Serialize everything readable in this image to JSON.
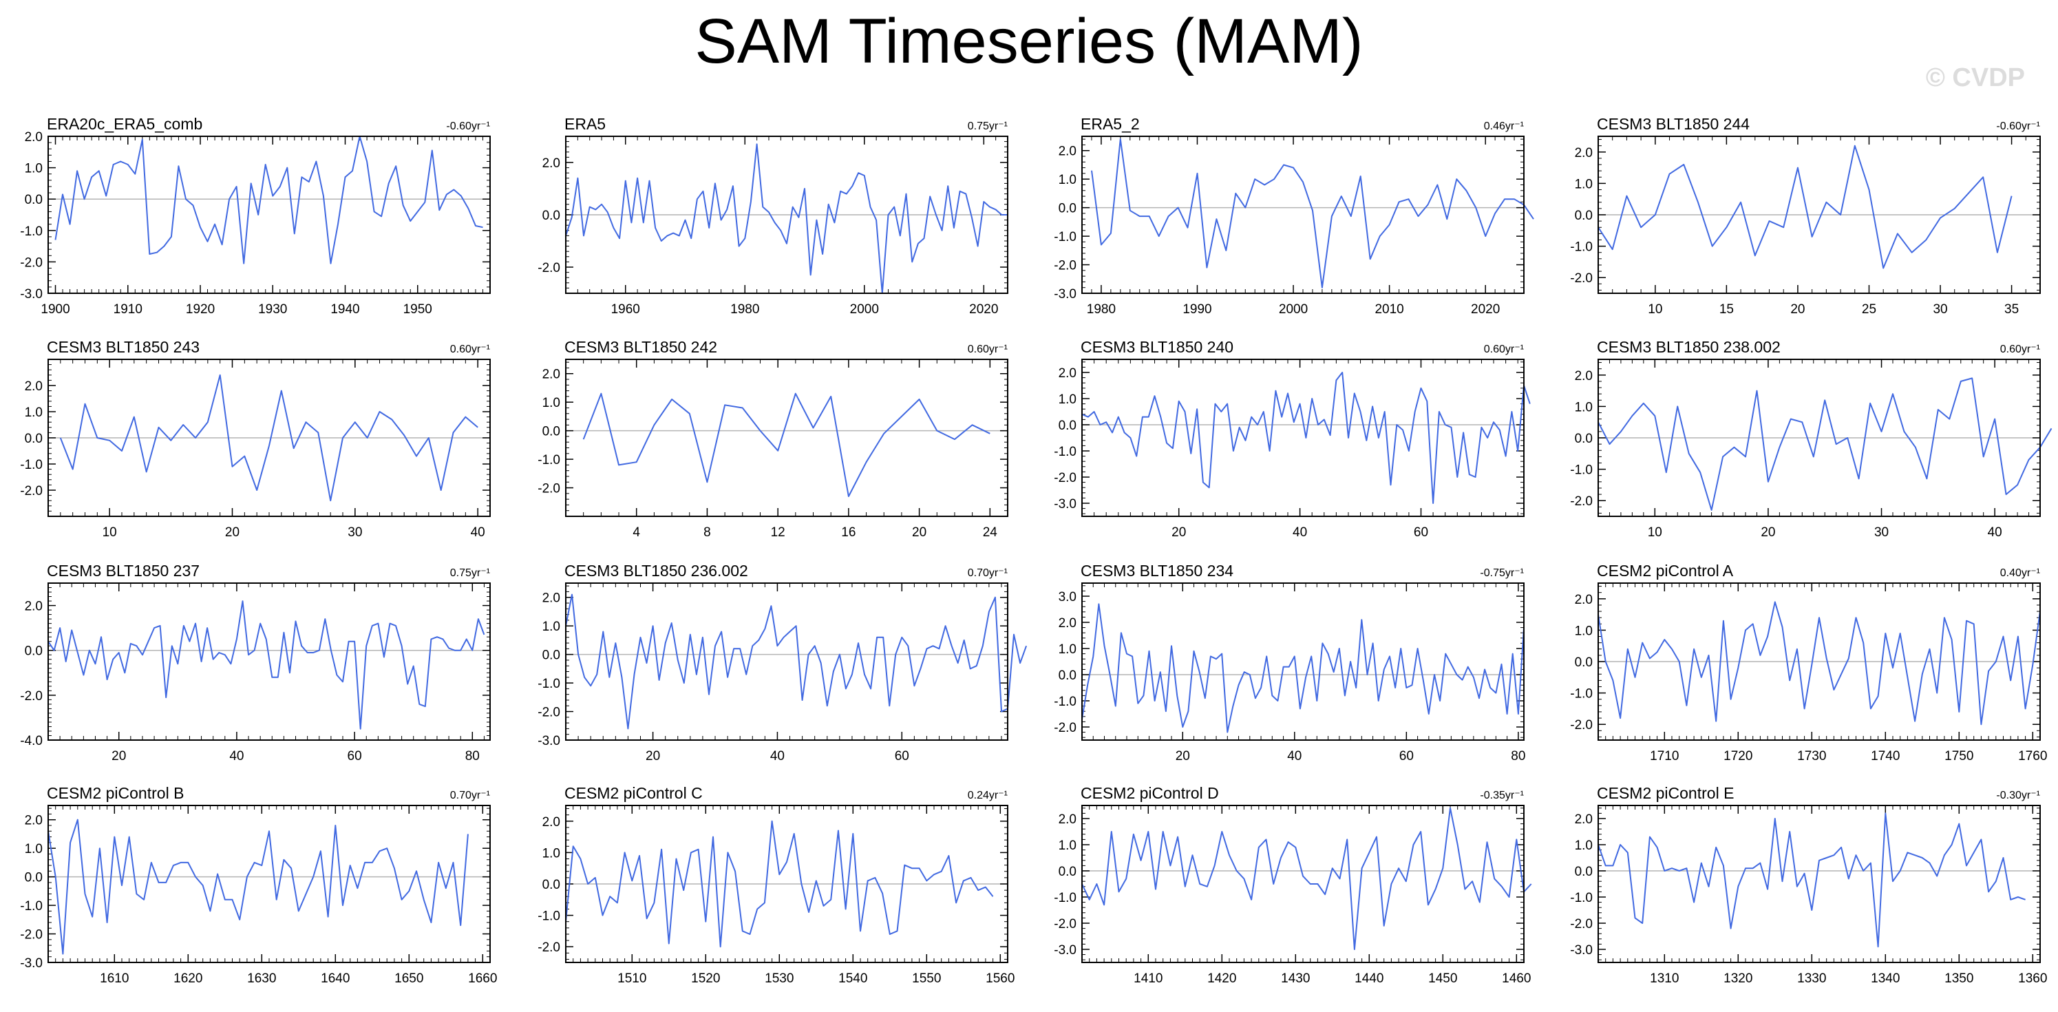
{
  "title": "SAM Timeseries (MAM)",
  "watermark": "© CVDP",
  "colors": {
    "line": "#4169e1",
    "zero_line": "#b4b4b4",
    "axis": "#000000"
  },
  "chart_data": [
    {
      "type": "line",
      "title": "ERA20c_ERA5_comb",
      "trend": "-0.60yr⁻¹",
      "xlim": [
        1899,
        1960
      ],
      "xticks": [
        1900,
        1910,
        1920,
        1930,
        1940,
        1950
      ],
      "xminor": 1,
      "ylim": [
        -3,
        2
      ],
      "yticks": [
        2,
        1,
        0,
        -1,
        -2,
        -3
      ],
      "x_start": 1900,
      "values": [
        -1.3,
        0.15,
        -0.8,
        0.9,
        0.0,
        0.7,
        0.9,
        0.1,
        1.1,
        1.2,
        1.1,
        0.8,
        1.9,
        -1.75,
        -1.7,
        -1.5,
        -1.2,
        1.05,
        0.0,
        -0.2,
        -0.9,
        -1.35,
        -0.8,
        -1.45,
        0.0,
        0.4,
        -2.05,
        0.5,
        -0.5,
        1.1,
        0.1,
        0.4,
        1.0,
        -1.1,
        0.7,
        0.55,
        1.2,
        0.1,
        -2.05,
        -0.8,
        0.7,
        0.9,
        2.0,
        1.2,
        -0.4,
        -0.55,
        0.5,
        1.05,
        -0.2,
        -0.7,
        -0.4,
        -0.1,
        1.55,
        -0.35,
        0.15,
        0.3,
        0.1,
        -0.3,
        -0.85,
        -0.9
      ]
    },
    {
      "type": "line",
      "title": "ERA5",
      "trend": "0.75yr⁻¹",
      "xlim": [
        1950,
        2024
      ],
      "xticks": [
        1960,
        1980,
        2000,
        2020
      ],
      "xminor": 2,
      "ylim": [
        -3,
        3
      ],
      "yticks": [
        2,
        0,
        -2
      ],
      "x_start": 1950,
      "values": [
        -0.8,
        -0.1,
        1.4,
        -0.8,
        0.3,
        0.2,
        0.4,
        0.1,
        -0.5,
        -0.9,
        1.3,
        -0.3,
        1.4,
        -0.3,
        1.3,
        -0.5,
        -1.0,
        -0.8,
        -0.7,
        -0.8,
        -0.2,
        -0.9,
        0.6,
        0.9,
        -0.5,
        1.2,
        -0.2,
        0.2,
        1.1,
        -1.2,
        -0.9,
        0.5,
        2.7,
        0.3,
        0.1,
        -0.3,
        -0.6,
        -1.1,
        0.3,
        -0.1,
        1.0,
        -2.3,
        -0.2,
        -1.5,
        0.4,
        -0.3,
        0.9,
        0.8,
        1.1,
        1.6,
        1.5,
        0.3,
        -0.2,
        -3.0,
        0.0,
        0.3,
        -0.8,
        0.8,
        -1.8,
        -1.1,
        -0.9,
        0.7,
        0.0,
        -0.6,
        1.1,
        -0.5,
        0.9,
        0.8,
        -0.1,
        -1.2,
        0.5,
        0.3,
        0.2,
        0.0,
        0.0
      ]
    },
    {
      "type": "line",
      "title": "ERA5_2",
      "trend": "0.46yr⁻¹",
      "xlim": [
        1978,
        2024
      ],
      "xticks": [
        1980,
        1990,
        2000,
        2010,
        2020
      ],
      "xminor": 1,
      "ylim": [
        -3,
        2.5
      ],
      "yticks": [
        2,
        1,
        0,
        -1,
        -2,
        -3
      ],
      "x_start": 1979,
      "values": [
        1.3,
        -1.3,
        -0.9,
        2.4,
        -0.1,
        -0.3,
        -0.3,
        -1.0,
        -0.3,
        0.0,
        -0.7,
        1.2,
        -2.1,
        -0.4,
        -1.5,
        0.5,
        0.0,
        1.0,
        0.8,
        1.0,
        1.5,
        1.4,
        0.9,
        -0.1,
        -2.8,
        -0.3,
        0.4,
        -0.3,
        1.1,
        -1.8,
        -1.0,
        -0.6,
        0.2,
        0.3,
        -0.3,
        0.1,
        0.8,
        -0.4,
        1.0,
        0.6,
        0.0,
        -1.0,
        -0.2,
        0.3,
        0.3,
        0.1,
        -0.4
      ]
    },
    {
      "type": "line",
      "title": "CESM3 BLT1850 244",
      "trend": "-0.60yr⁻¹",
      "xlim": [
        6,
        37
      ],
      "xticks": [
        10,
        15,
        20,
        25,
        30,
        35
      ],
      "xminor": 1,
      "ylim": [
        -2.5,
        2.5
      ],
      "yticks": [
        2,
        1,
        0,
        -1,
        -2
      ],
      "x_start": 6,
      "values": [
        -0.4,
        -1.1,
        0.6,
        -0.4,
        0.0,
        1.3,
        1.6,
        0.4,
        -1.0,
        -0.4,
        0.4,
        -1.3,
        -0.2,
        -0.4,
        1.5,
        -0.7,
        0.4,
        0.0,
        2.2,
        0.8,
        -1.7,
        -0.6,
        -1.2,
        -0.8,
        -0.1,
        0.2,
        0.7,
        1.2,
        -1.2,
        0.6
      ]
    },
    {
      "type": "line",
      "title": "CESM3 BLT1850 243",
      "trend": "0.60yr⁻¹",
      "xlim": [
        5,
        41
      ],
      "xticks": [
        10,
        20,
        30,
        40
      ],
      "xminor": 1,
      "ylim": [
        -3,
        3
      ],
      "yticks": [
        2,
        1,
        0,
        -1,
        -2
      ],
      "x_start": 6,
      "values": [
        0.0,
        -1.2,
        1.3,
        0.0,
        -0.1,
        -0.5,
        0.8,
        -1.3,
        0.4,
        -0.1,
        0.5,
        0.0,
        0.6,
        2.4,
        -1.1,
        -0.7,
        -2.0,
        -0.3,
        1.8,
        -0.4,
        0.6,
        0.2,
        -2.4,
        0.0,
        0.6,
        0.0,
        1.0,
        0.7,
        0.1,
        -0.7,
        0.0,
        -2.0,
        0.2,
        0.8,
        0.4
      ]
    },
    {
      "type": "line",
      "title": "CESM3 BLT1850 242",
      "trend": "0.60yr⁻¹",
      "xlim": [
        0,
        25
      ],
      "xticks": [
        4,
        8,
        12,
        16,
        20,
        24
      ],
      "xminor": 1,
      "ylim": [
        -3,
        2.5
      ],
      "yticks": [
        2,
        1,
        0,
        -1,
        -2
      ],
      "x_start": 1,
      "values": [
        -0.3,
        1.3,
        -1.2,
        -1.1,
        0.2,
        1.1,
        0.6,
        -1.8,
        0.9,
        0.8,
        0.0,
        -0.7,
        1.3,
        0.1,
        1.2,
        -2.3,
        -1.1,
        -0.1,
        0.5,
        1.1,
        0.0,
        -0.3,
        0.2,
        -0.1
      ]
    },
    {
      "type": "line",
      "title": "CESM3 BLT1850 240",
      "trend": "0.60yr⁻¹",
      "xlim": [
        4,
        77
      ],
      "xticks": [
        20,
        40,
        60
      ],
      "xminor": 2,
      "ylim": [
        -3.5,
        2.5
      ],
      "yticks": [
        2,
        1,
        0,
        -1,
        -2,
        -3
      ],
      "x_start": 4,
      "values": [
        0.4,
        0.3,
        0.5,
        0.0,
        0.1,
        -0.3,
        0.3,
        -0.3,
        -0.5,
        -1.2,
        0.3,
        0.3,
        1.1,
        0.3,
        -0.7,
        -0.9,
        0.9,
        0.5,
        -1.1,
        0.6,
        -2.2,
        -2.4,
        0.8,
        0.5,
        0.8,
        -1.0,
        -0.1,
        -0.6,
        0.3,
        0.0,
        0.5,
        -1.0,
        1.3,
        0.3,
        1.2,
        0.1,
        0.8,
        -0.5,
        1.0,
        0.0,
        0.2,
        -0.4,
        1.7,
        2.0,
        -0.5,
        1.2,
        0.5,
        -0.6,
        0.7,
        -0.5,
        0.5,
        -2.3,
        0.0,
        -0.2,
        -1.0,
        0.5,
        1.4,
        0.9,
        -3.0,
        0.5,
        0.0,
        -0.1,
        -2.0,
        -0.3,
        -1.9,
        -2.0,
        -0.1,
        -0.5,
        0.1,
        -0.2,
        -1.2,
        0.5,
        -1.0,
        1.5,
        0.8
      ]
    },
    {
      "type": "line",
      "title": "CESM3 BLT1850 238.002",
      "trend": "0.60yr⁻¹",
      "xlim": [
        5,
        44
      ],
      "xticks": [
        10,
        20,
        30,
        40
      ],
      "xminor": 1,
      "ylim": [
        -2.5,
        2.5
      ],
      "yticks": [
        2,
        1,
        0,
        -1,
        -2
      ],
      "x_start": 5,
      "values": [
        0.5,
        -0.2,
        0.2,
        0.7,
        1.1,
        0.7,
        -1.1,
        1.0,
        -0.5,
        -1.1,
        -2.3,
        -0.6,
        -0.3,
        -0.6,
        1.5,
        -1.4,
        -0.3,
        0.6,
        0.5,
        -0.6,
        1.2,
        -0.2,
        0.0,
        -1.3,
        1.1,
        0.2,
        1.4,
        0.2,
        -0.3,
        -1.3,
        0.9,
        0.6,
        1.8,
        1.9,
        -0.6,
        0.6,
        -1.8,
        -1.5,
        -0.7,
        -0.3,
        0.3
      ]
    },
    {
      "type": "line",
      "title": "CESM3 BLT1850 237",
      "trend": "0.75yr⁻¹",
      "xlim": [
        8,
        83
      ],
      "xticks": [
        20,
        40,
        60,
        80
      ],
      "xminor": 2,
      "ylim": [
        -4,
        3
      ],
      "yticks": [
        2,
        0,
        -2,
        -4
      ],
      "x_start": 8,
      "values": [
        0.4,
        0.0,
        1.0,
        -0.5,
        0.9,
        -0.1,
        -1.1,
        0.0,
        -0.6,
        0.6,
        -1.3,
        -0.4,
        -0.1,
        -1.0,
        0.3,
        0.2,
        -0.2,
        0.4,
        1.0,
        1.1,
        -2.1,
        0.2,
        -0.6,
        1.1,
        0.4,
        1.2,
        -0.5,
        1.0,
        -0.4,
        -0.1,
        -0.2,
        -0.6,
        0.5,
        2.2,
        -0.2,
        0.0,
        1.2,
        0.5,
        -1.2,
        -1.2,
        0.8,
        -1.0,
        1.3,
        0.2,
        -0.1,
        -0.1,
        0.0,
        1.4,
        0.0,
        -1.1,
        -1.4,
        0.4,
        0.4,
        -3.5,
        0.2,
        1.1,
        1.2,
        -0.3,
        1.2,
        1.1,
        0.2,
        -1.5,
        -0.7,
        -2.4,
        -2.5,
        0.5,
        0.6,
        0.5,
        0.1,
        0.0,
        0.0,
        0.5,
        0.0,
        1.4,
        0.7
      ]
    },
    {
      "type": "line",
      "title": "CESM3 BLT1850 236.002",
      "trend": "0.70yr⁻¹",
      "xlim": [
        6,
        77
      ],
      "xticks": [
        20,
        40,
        60
      ],
      "xminor": 2,
      "ylim": [
        -3,
        2.5
      ],
      "yticks": [
        2,
        1,
        0,
        -1,
        -2,
        -3
      ],
      "x_start": 6,
      "values": [
        1.0,
        2.1,
        0.0,
        -0.8,
        -1.1,
        -0.7,
        0.8,
        -0.8,
        0.4,
        -0.8,
        -2.6,
        -0.7,
        0.6,
        -0.3,
        1.0,
        -0.9,
        0.4,
        1.1,
        -0.2,
        -1.0,
        0.7,
        -0.7,
        0.6,
        -1.4,
        0.3,
        0.8,
        -0.8,
        0.2,
        0.2,
        -0.7,
        0.3,
        0.5,
        0.9,
        1.7,
        0.3,
        0.6,
        0.8,
        1.0,
        -1.6,
        0.0,
        0.3,
        -0.3,
        -1.8,
        -0.6,
        0.0,
        -1.2,
        -0.7,
        0.4,
        -0.7,
        -1.2,
        0.6,
        0.6,
        -1.8,
        0.0,
        0.6,
        0.3,
        -1.1,
        -0.5,
        0.2,
        0.3,
        0.2,
        1.0,
        0.3,
        -0.3,
        0.5,
        -0.5,
        -0.4,
        0.3,
        1.5,
        2.0,
        -2.0,
        -1.9,
        0.7,
        -0.3,
        0.3
      ]
    },
    {
      "type": "line",
      "title": "CESM3 BLT1850 234",
      "trend": "-0.75yr⁻¹",
      "xlim": [
        2,
        81
      ],
      "xticks": [
        20,
        40,
        60,
        80
      ],
      "xminor": 2,
      "ylim": [
        -2.5,
        3.5
      ],
      "yticks": [
        3,
        2,
        1,
        0,
        -1,
        -2
      ],
      "x_start": 2,
      "values": [
        -1.7,
        -0.4,
        0.7,
        2.7,
        1.1,
        0.0,
        -1.2,
        1.6,
        0.8,
        0.7,
        -1.1,
        -0.8,
        0.9,
        -1.0,
        0.1,
        -1.4,
        1.1,
        -0.8,
        -2.0,
        -1.4,
        0.9,
        0.1,
        -0.9,
        0.7,
        0.6,
        0.8,
        -2.2,
        -1.2,
        -0.4,
        0.1,
        0.0,
        -0.9,
        -0.5,
        0.7,
        -0.8,
        -1.0,
        0.3,
        0.3,
        0.7,
        -1.3,
        -0.1,
        0.7,
        -1.0,
        1.2,
        0.8,
        0.1,
        1.0,
        -0.8,
        0.5,
        -0.5,
        2.1,
        0.0,
        1.2,
        -1.0,
        0.2,
        0.7,
        -0.5,
        1.0,
        -0.5,
        -0.4,
        1.0,
        -0.2,
        -1.5,
        0.0,
        -1.0,
        0.8,
        0.4,
        0.0,
        -0.2,
        0.3,
        -0.1,
        -0.9,
        0.2,
        -0.5,
        -0.7,
        0.4,
        -1.5,
        0.8,
        -1.5,
        1.8
      ]
    },
    {
      "type": "line",
      "title": "CESM2 piControl A",
      "trend": "0.40yr⁻¹",
      "xlim": [
        1701,
        1761
      ],
      "xticks": [
        1710,
        1720,
        1730,
        1740,
        1750,
        1760
      ],
      "xminor": 1,
      "ylim": [
        -2.5,
        2.5
      ],
      "yticks": [
        2,
        1,
        0,
        -1,
        -2
      ],
      "x_start": 1701,
      "values": [
        1.5,
        0.0,
        -0.6,
        -1.8,
        0.4,
        -0.5,
        0.6,
        0.1,
        0.3,
        0.7,
        0.4,
        0.0,
        -1.4,
        0.4,
        -0.5,
        0.2,
        -1.9,
        1.3,
        -1.2,
        -0.2,
        1.0,
        1.2,
        0.2,
        0.8,
        1.9,
        1.1,
        -0.6,
        0.4,
        -1.5,
        -0.1,
        1.4,
        0.1,
        -0.9,
        -0.4,
        0.1,
        1.4,
        0.6,
        -1.5,
        -1.1,
        0.9,
        -0.2,
        0.9,
        -0.5,
        -1.9,
        -0.4,
        0.4,
        -1.0,
        1.4,
        0.7,
        -1.6,
        1.3,
        1.2,
        -2.0,
        -0.3,
        0.0,
        0.8,
        -0.6,
        0.8,
        -1.5,
        -0.1,
        1.6
      ]
    },
    {
      "type": "line",
      "title": "CESM2 piControl B",
      "trend": "0.70yr⁻¹",
      "xlim": [
        1601,
        1661
      ],
      "xticks": [
        1610,
        1620,
        1630,
        1640,
        1650,
        1660
      ],
      "xminor": 1,
      "ylim": [
        -3,
        2.5
      ],
      "yticks": [
        2,
        1,
        0,
        -1,
        -2,
        -3
      ],
      "x_start": 1601,
      "values": [
        1.6,
        0.0,
        -2.7,
        1.2,
        2.0,
        -0.6,
        -1.4,
        1.0,
        -1.6,
        1.4,
        -0.3,
        1.4,
        -0.6,
        -0.8,
        0.5,
        -0.2,
        -0.2,
        0.4,
        0.5,
        0.5,
        0.0,
        -0.3,
        -1.2,
        0.1,
        -0.8,
        -0.8,
        -1.5,
        0.0,
        0.5,
        0.4,
        1.6,
        -0.8,
        0.6,
        0.3,
        -1.2,
        -0.6,
        0.0,
        0.9,
        -1.4,
        1.8,
        -1.0,
        0.4,
        -0.4,
        0.5,
        0.5,
        0.9,
        1.0,
        0.3,
        -0.8,
        -0.5,
        0.2,
        -0.8,
        -1.6,
        0.5,
        -0.4,
        0.5,
        -1.7,
        1.5
      ]
    },
    {
      "type": "line",
      "title": "CESM2 piControl C",
      "trend": "0.24yr⁻¹",
      "xlim": [
        1501,
        1561
      ],
      "xticks": [
        1510,
        1520,
        1530,
        1540,
        1550,
        1560
      ],
      "xminor": 1,
      "ylim": [
        -2.5,
        2.5
      ],
      "yticks": [
        2,
        1,
        0,
        -1,
        -2
      ],
      "x_start": 1501,
      "values": [
        -1.2,
        1.2,
        0.8,
        0.0,
        0.2,
        -1.0,
        -0.4,
        -0.6,
        1.0,
        0.1,
        0.9,
        -1.1,
        -0.6,
        1.1,
        -1.9,
        0.8,
        -0.2,
        1.0,
        1.1,
        -1.2,
        1.5,
        -2.0,
        1.0,
        0.4,
        -1.5,
        -1.6,
        -0.8,
        -0.6,
        2.0,
        0.3,
        0.7,
        1.6,
        0.0,
        -0.9,
        0.1,
        -0.7,
        -0.5,
        1.7,
        -0.8,
        1.6,
        -1.5,
        0.1,
        0.2,
        -0.3,
        -1.6,
        -1.5,
        0.6,
        0.5,
        0.5,
        0.1,
        0.3,
        0.4,
        0.9,
        -0.6,
        0.1,
        0.2,
        -0.2,
        -0.1,
        -0.4
      ]
    },
    {
      "type": "line",
      "title": "CESM2 piControl D",
      "trend": "-0.35yr⁻¹",
      "xlim": [
        1401,
        1461
      ],
      "xticks": [
        1410,
        1420,
        1430,
        1440,
        1450,
        1460
      ],
      "xminor": 1,
      "ylim": [
        -3.5,
        2.5
      ],
      "yticks": [
        2,
        1,
        0,
        -1,
        -2,
        -3
      ],
      "x_start": 1401,
      "values": [
        -0.5,
        -1.1,
        -0.5,
        -1.3,
        1.5,
        -0.8,
        -0.3,
        1.4,
        0.4,
        1.5,
        -0.7,
        1.5,
        0.2,
        1.3,
        -0.6,
        0.6,
        -0.5,
        -0.6,
        0.2,
        1.5,
        0.6,
        0.0,
        -0.3,
        -1.1,
        0.9,
        1.2,
        -0.5,
        0.5,
        1.1,
        0.9,
        -0.2,
        -0.5,
        -0.5,
        -0.9,
        0.1,
        -0.3,
        1.2,
        -3.0,
        0.1,
        0.7,
        1.3,
        -2.1,
        -0.5,
        0.1,
        -0.4,
        1.0,
        1.5,
        -1.3,
        -0.7,
        0.1,
        2.4,
        1.0,
        -0.7,
        -0.4,
        -1.2,
        1.1,
        -0.3,
        -0.6,
        -1.0,
        1.2,
        -0.8,
        -0.5
      ]
    },
    {
      "type": "line",
      "title": "CESM2 piControl E",
      "trend": "-0.30yr⁻¹",
      "xlim": [
        1301,
        1361
      ],
      "xticks": [
        1310,
        1320,
        1330,
        1340,
        1350,
        1360
      ],
      "xminor": 1,
      "ylim": [
        -3.5,
        2.5
      ],
      "yticks": [
        2,
        1,
        0,
        -1,
        -2,
        -3
      ],
      "x_start": 1301,
      "values": [
        1.0,
        0.2,
        0.2,
        1.0,
        0.7,
        -1.8,
        -2.0,
        1.3,
        0.9,
        0.0,
        0.1,
        0.0,
        0.1,
        -1.2,
        0.3,
        -0.6,
        0.9,
        0.2,
        -2.2,
        -0.6,
        0.1,
        0.1,
        0.3,
        -0.7,
        2.0,
        -0.4,
        1.5,
        -0.6,
        -0.1,
        -1.5,
        0.4,
        0.5,
        0.6,
        0.9,
        -0.3,
        0.6,
        0.0,
        0.3,
        -2.9,
        2.2,
        -0.4,
        0.0,
        0.7,
        0.6,
        0.5,
        0.3,
        -0.2,
        0.6,
        1.0,
        1.8,
        0.2,
        0.7,
        1.2,
        -0.8,
        -0.4,
        0.5,
        -1.1,
        -1.0,
        -1.1
      ]
    }
  ]
}
